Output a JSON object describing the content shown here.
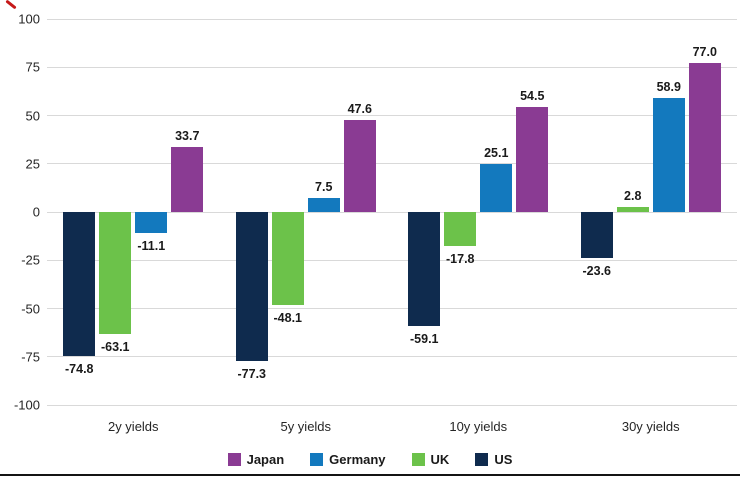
{
  "chart_data": {
    "type": "bar",
    "title": "",
    "categories": [
      "2y yields",
      "5y yields",
      "10y yields",
      "30y yields"
    ],
    "series": [
      {
        "name": "US",
        "color": "#0F2B4E",
        "values": [
          -74.8,
          -77.3,
          -59.1,
          -23.6
        ],
        "labels": [
          "-74.8",
          "-77.3",
          "-59.1",
          "-23.6"
        ]
      },
      {
        "name": "UK",
        "color": "#6CC24A",
        "values": [
          -63.1,
          -48.1,
          -17.8,
          2.8
        ],
        "labels": [
          "-63.1",
          "-48.1",
          "-17.8",
          "2.8"
        ]
      },
      {
        "name": "Germany",
        "color": "#1379BE",
        "values": [
          -11.1,
          7.5,
          25.1,
          58.9
        ],
        "labels": [
          "-11.1",
          "7.5",
          "25.1",
          "58.9"
        ]
      },
      {
        "name": "Japan",
        "color": "#8A3B93",
        "values": [
          33.7,
          47.6,
          54.5,
          77.0
        ],
        "labels": [
          "33.7",
          "47.6",
          "54.5",
          "77.0"
        ]
      }
    ],
    "ylim": [
      -100,
      100
    ],
    "yticks": [
      "100",
      "75",
      "50",
      "25",
      "0",
      "-25",
      "-50",
      "-75",
      "-100"
    ],
    "grid": true,
    "legend_position": "bottom"
  },
  "legend": {
    "items": [
      {
        "label": "Japan",
        "color": "#8A3B93"
      },
      {
        "label": "Germany",
        "color": "#1379BE"
      },
      {
        "label": "UK",
        "color": "#6CC24A"
      },
      {
        "label": "US",
        "color": "#0F2B4E"
      }
    ]
  },
  "colors": {
    "gridline": "#D9D9D9",
    "text": "#1A1A1A",
    "bottom_rule": "#141414",
    "corner_mark": "#C00000"
  }
}
